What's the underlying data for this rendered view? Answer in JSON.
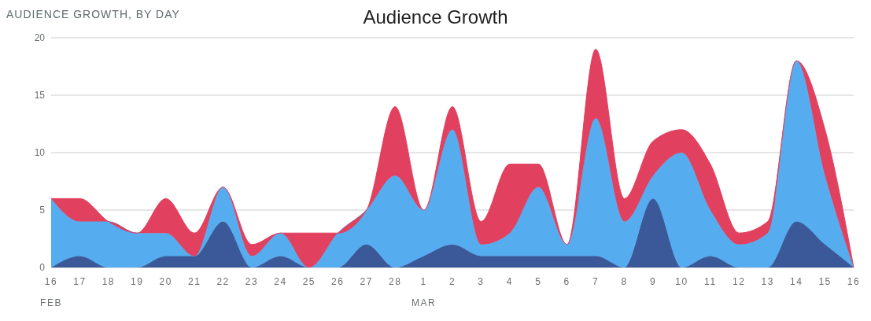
{
  "chart_data": {
    "type": "area",
    "title": "Audience Growth",
    "subtitle": "AUDIENCE GROWTH, BY DAY",
    "categories": [
      "16\nFEB",
      "17",
      "18",
      "19",
      "20",
      "21",
      "22",
      "23",
      "24",
      "25",
      "26",
      "27",
      "28",
      "1\nMAR",
      "2",
      "3",
      "4",
      "5",
      "6",
      "7",
      "8",
      "9",
      "10",
      "11",
      "12",
      "13",
      "14",
      "15",
      "16"
    ],
    "series": [
      {
        "color": "#3b5998",
        "values": [
          0,
          1,
          0,
          0,
          1,
          1,
          4,
          0,
          1,
          0,
          0,
          2,
          0,
          1,
          2,
          1,
          1,
          1,
          1,
          1,
          0,
          6,
          0,
          1,
          0,
          0,
          4,
          2,
          0
        ]
      },
      {
        "color": "#55acee",
        "values": [
          6,
          3,
          4,
          3,
          2,
          0,
          3,
          1,
          2,
          0,
          3,
          3,
          8,
          4,
          10,
          1,
          2,
          6,
          1,
          12,
          4,
          2,
          10,
          4,
          2,
          3,
          14,
          6,
          0
        ]
      },
      {
        "color": "#e1405f",
        "values": [
          0,
          2,
          0,
          0,
          3,
          2,
          0,
          1,
          0,
          3,
          0,
          0,
          6,
          0,
          2,
          2,
          6,
          2,
          0,
          6,
          2,
          3,
          2,
          4,
          1,
          1,
          0,
          4,
          0
        ]
      }
    ],
    "stacked": true,
    "ylim": [
      0,
      20
    ],
    "yticks": [
      0,
      5,
      10,
      15,
      20
    ],
    "grid": "y",
    "legend": false
  }
}
